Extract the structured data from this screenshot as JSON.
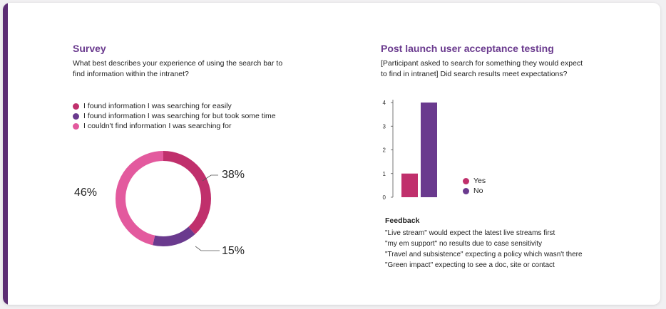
{
  "colors": {
    "accent": "#5c2d73",
    "title": "#6a3a8e",
    "easily": "#c0306c",
    "took_time": "#6a3a8e",
    "couldnt_find": "#e35a9e",
    "yes": "#c0306c",
    "no": "#6a3a8e"
  },
  "survey": {
    "title": "Survey",
    "question_line1": "What best describes your experience of using the search bar to",
    "question_line2": "find information within the intranet?",
    "legend": [
      {
        "label": "I found information I was searching for easily",
        "color": "#c0306c"
      },
      {
        "label": "I found information I was searching for but took some time",
        "color": "#6a3a8e"
      },
      {
        "label": "I couldn't find information I was searching for",
        "color": "#e35a9e"
      }
    ]
  },
  "uat": {
    "title": "Post launch user acceptance testing",
    "question_line1": "[Participant asked to search for something they would expect",
    "question_line2": "to find in intranet] Did search results meet expectations?",
    "legend": [
      {
        "label": "Yes",
        "color": "#c0306c"
      },
      {
        "label": "No",
        "color": "#6a3a8e"
      }
    ]
  },
  "feedback": {
    "title": "Feedback",
    "items": [
      "\"Live stream\" would expect the latest live streams first",
      "\"my em support\" no results due to case sensitivity",
      "\"Travel and subsistence\" expecting a policy which wasn't there",
      "\"Green impact\" expecting to see a doc, site or contact"
    ]
  },
  "chart_data": [
    {
      "type": "pie",
      "variant": "donut",
      "labels": [
        "I found information I was searching for easily",
        "I found information I was searching for but took some time",
        "I couldn't find information I was searching for"
      ],
      "values": [
        38,
        15,
        46
      ],
      "value_labels": [
        "38%",
        "15%",
        "46%"
      ],
      "colors": [
        "#c0306c",
        "#6a3a8e",
        "#e35a9e"
      ]
    },
    {
      "type": "bar",
      "categories": [
        "Yes",
        "No"
      ],
      "values": [
        1,
        4
      ],
      "colors": [
        "#c0306c",
        "#6a3a8e"
      ],
      "ylim": [
        0,
        4
      ],
      "yticks": [
        "0",
        "1",
        "2",
        "3",
        "4"
      ],
      "grid": false,
      "legend_position": "right"
    }
  ]
}
